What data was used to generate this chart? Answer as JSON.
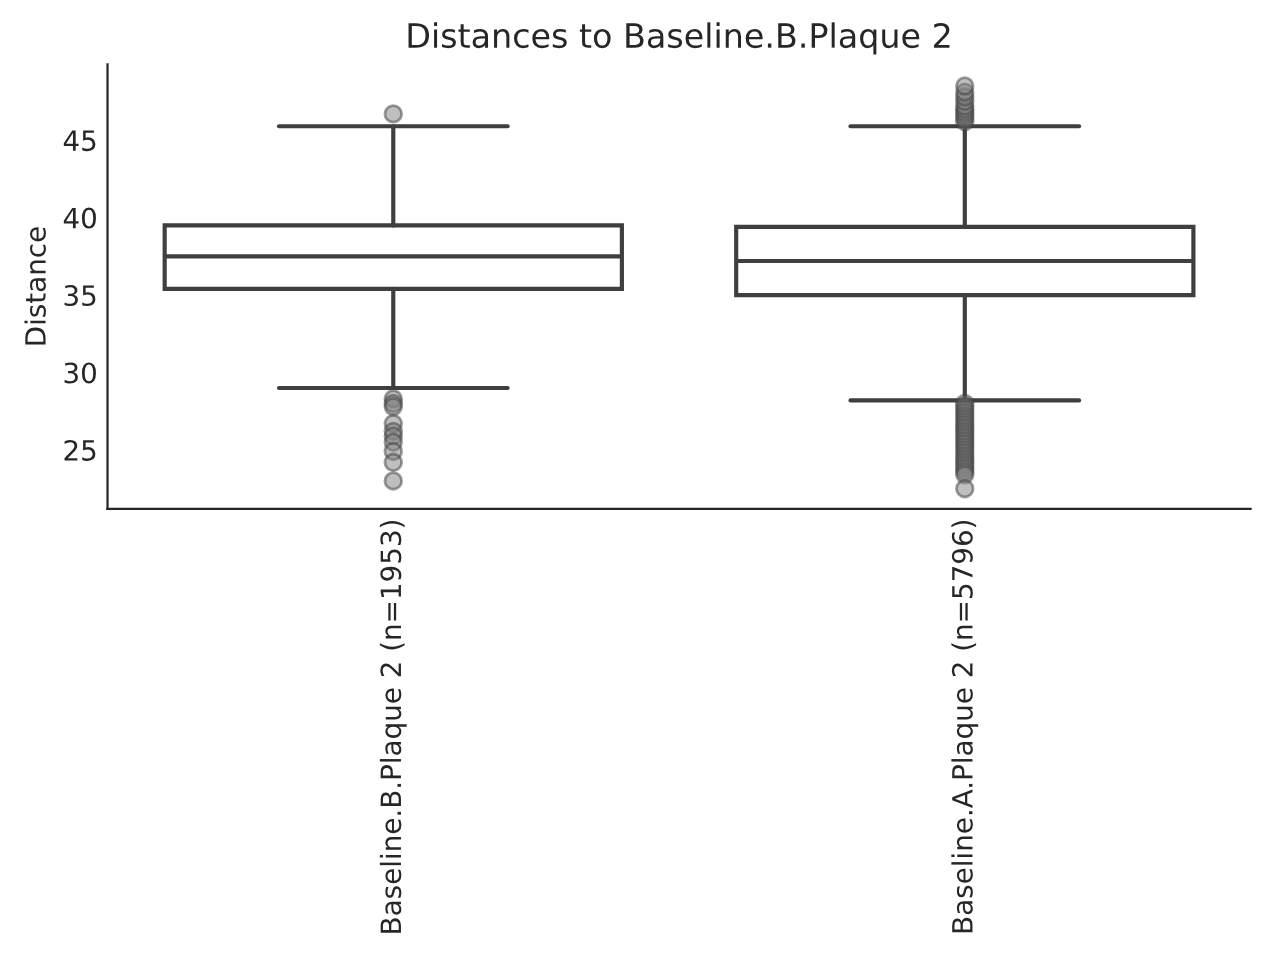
{
  "chart_data": {
    "type": "box",
    "title": "Distances to Baseline.B.Plaque 2",
    "ylabel": "Distance",
    "categories": [
      "Baseline.B.Plaque 2 (n=1953)",
      "Baseline.A.Plaque 2 (n=5796)"
    ],
    "boxes": [
      {
        "low": 29.0,
        "q1": 35.4,
        "median": 37.5,
        "q3": 39.5,
        "high": 45.9,
        "outliers": [
          46.7,
          28.3,
          28.0,
          27.8,
          26.7,
          26.2,
          25.9,
          25.5,
          24.9,
          24.2,
          23.0
        ]
      },
      {
        "low": 28.2,
        "q1": 35.0,
        "median": 37.2,
        "q3": 39.4,
        "high": 45.9,
        "outliers": [
          46.2,
          46.4,
          46.6,
          46.8,
          47.0,
          47.2,
          47.5,
          47.8,
          48.1,
          48.5,
          28.0,
          27.8,
          27.6,
          27.4,
          27.2,
          27.0,
          26.8,
          26.6,
          26.4,
          26.2,
          26.0,
          25.8,
          25.6,
          25.4,
          25.2,
          25.0,
          24.8,
          24.6,
          24.4,
          24.2,
          24.0,
          23.8,
          23.6,
          23.4,
          22.5
        ]
      }
    ],
    "ylim": [
      21.2,
      49.9
    ],
    "yticks": [
      25,
      30,
      35,
      40,
      45
    ],
    "grid": false,
    "marker": "circle"
  }
}
